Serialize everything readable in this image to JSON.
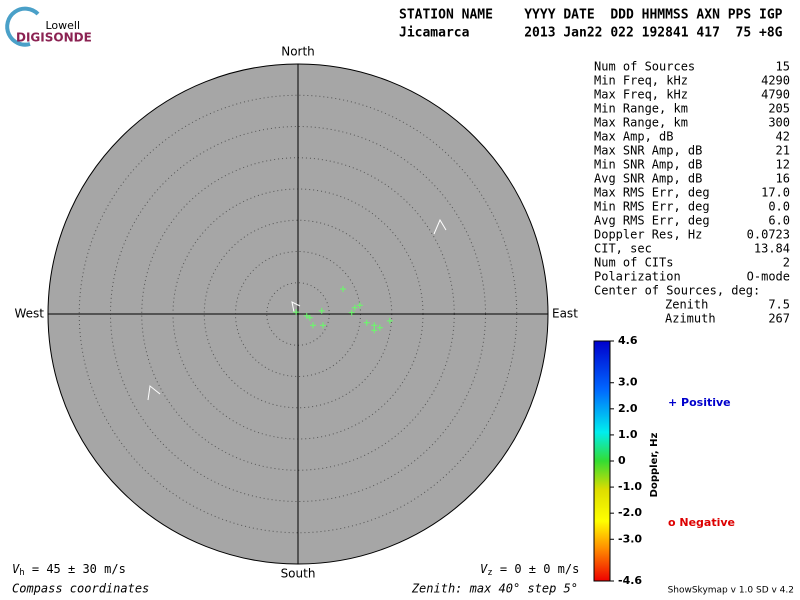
{
  "logo": {
    "top": "Lowell",
    "bottom": "DIGISONDE"
  },
  "header": {
    "line1": "STATION NAME    YYYY DATE  DDD HHMMSS AXN PPS IGP",
    "line2": "Jicamarca       2013 Jan22 022 192841 417  75 +8G"
  },
  "directions": {
    "north": "North",
    "south": "South",
    "west": "West",
    "east": "East"
  },
  "stats": {
    "rows": [
      [
        "Num of Sources",
        "15"
      ],
      [
        "Min Freq, kHz",
        "4290"
      ],
      [
        "Max Freq, kHz",
        "4790"
      ],
      [
        "Min Range, km",
        "205"
      ],
      [
        "Max Range, km",
        "300"
      ],
      [
        "Max Amp, dB",
        "42"
      ],
      [
        "Max SNR Amp, dB",
        "21"
      ],
      [
        "Min SNR Amp, dB",
        "12"
      ],
      [
        "Avg SNR Amp, dB",
        "16"
      ],
      [
        "Max RMS Err, deg",
        "17.0"
      ],
      [
        "Min RMS Err, deg",
        "0.0"
      ],
      [
        "Avg RMS Err, deg",
        "6.0"
      ],
      [
        "Doppler Res, Hz",
        "0.0723"
      ],
      [
        "CIT, sec",
        "13.84"
      ],
      [
        "Num of CITs",
        "2"
      ],
      [
        "Polarization",
        "O-mode"
      ]
    ],
    "center_title": "Center of Sources, deg:",
    "center_rows": [
      [
        "Zenith",
        "7.5"
      ],
      [
        "Azimuth",
        "267"
      ]
    ]
  },
  "legend": {
    "positive": "+ Positive",
    "negative": "o Negative"
  },
  "footer": {
    "vh": {
      "symbol": "V",
      "sub": "h",
      "text": " = 45 ± 30 m/s"
    },
    "vz": {
      "symbol": "V",
      "sub": "z",
      "text": " = 0 ± 0 m/s"
    },
    "coords": "Compass coordinates",
    "zenith": "Zenith: max 40°  step 5°",
    "version": "ShowSkymap v 1.0  SD v 4.2"
  },
  "chart_data": {
    "type": "skymap",
    "rlim": [
      0,
      40
    ],
    "rticks": [
      5,
      10,
      15,
      20,
      25,
      30,
      35,
      40
    ],
    "series": [
      {
        "color": "#66ff66",
        "x": [
          7.2,
          9.9,
          9.1,
          8.6,
          11.0,
          12.2,
          13.1,
          12.2,
          14.7,
          3.8,
          2.4,
          4.0,
          1.4,
          1.9,
          -0.3
        ],
        "y": [
          4.0,
          1.4,
          1.0,
          0.2,
          -1.4,
          -1.8,
          -2.2,
          -2.6,
          -1.1,
          0.5,
          -1.8,
          -1.8,
          -0.3,
          -0.6,
          0.3
        ]
      }
    ],
    "colorbar": {
      "label": "Doppler, Hz",
      "lim": [
        -4.6,
        4.6
      ],
      "ticks": [
        4.6,
        {
          "value": 3,
          "label": "3.0"
        },
        {
          "value": 2,
          "label": "2.0"
        },
        {
          "value": 1,
          "label": "1.0"
        },
        0,
        {
          "value": -1,
          "label": "-1.0"
        },
        {
          "value": -2,
          "label": "-2.0"
        },
        {
          "value": -3,
          "label": "-3.0"
        },
        -4.6
      ]
    }
  }
}
